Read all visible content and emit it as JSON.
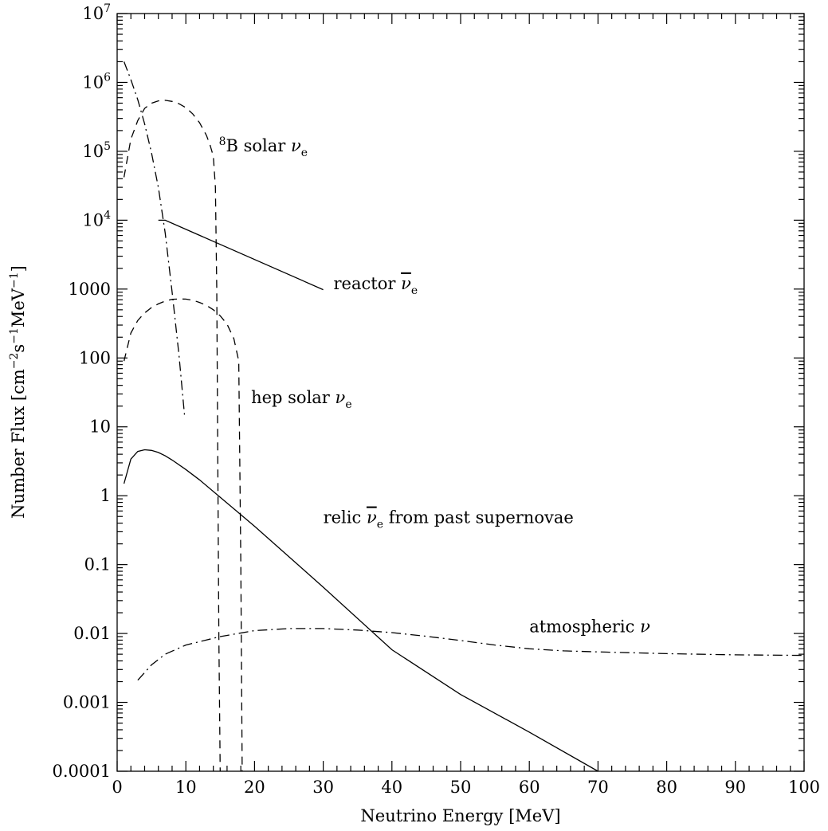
{
  "chart_data": {
    "type": "line",
    "title": "",
    "xlabel": "Neutrino Energy [MeV]",
    "ylabel": {
      "prefix": "Number Flux [cm",
      "exp1": "−2",
      "mid": "s",
      "exp2": "−1",
      "mid2": "MeV",
      "exp3": "−1",
      "suffix": "]"
    },
    "xlim": [
      0,
      100
    ],
    "ylim": [
      0.0001,
      10000000
    ],
    "yscale": "log",
    "grid": false,
    "legend": "none",
    "x_ticks": [
      "0",
      "10",
      "20",
      "30",
      "40",
      "50",
      "60",
      "70",
      "80",
      "90",
      "100"
    ],
    "y_ticks": [
      {
        "value": 0.0001,
        "label": "0.0001"
      },
      {
        "value": 0.001,
        "label": "0.001"
      },
      {
        "value": 0.01,
        "label": "0.01"
      },
      {
        "value": 0.1,
        "label": "0.1"
      },
      {
        "value": 1,
        "label": "1"
      },
      {
        "value": 10,
        "label": "10"
      },
      {
        "value": 100,
        "label": "100"
      },
      {
        "value": 1000,
        "label": "1000"
      },
      {
        "value": 10000,
        "label": "10",
        "exp": "4"
      },
      {
        "value": 100000,
        "label": "10",
        "exp": "5"
      },
      {
        "value": 1000000,
        "label": "10",
        "exp": "6"
      },
      {
        "value": 10000000,
        "label": "10",
        "exp": "7"
      }
    ],
    "series": [
      {
        "id": "b8-solar",
        "style": "dashed",
        "x": [
          1,
          2,
          3,
          4,
          5,
          6,
          7,
          8,
          9,
          10,
          11,
          12,
          13,
          13.5,
          14,
          14.3,
          14.5,
          14.8,
          15
        ],
        "y": [
          42000,
          150000,
          280000,
          420000,
          500000,
          540000,
          550000,
          530000,
          490000,
          430000,
          350000,
          260000,
          170000,
          125000,
          85000,
          30000,
          1000,
          0.01,
          0.0001
        ]
      },
      {
        "id": "hep-solar",
        "style": "dashed",
        "x": [
          1,
          2,
          3,
          4,
          5,
          6,
          7,
          8,
          9,
          10,
          11,
          12,
          13,
          14,
          15,
          16,
          17,
          17.7,
          18,
          18.2
        ],
        "y": [
          90,
          230,
          350,
          450,
          540,
          610,
          670,
          710,
          720,
          715,
          690,
          640,
          580,
          500,
          410,
          310,
          190,
          90,
          0.1,
          0.0001
        ]
      },
      {
        "id": "reactor",
        "style": "solid",
        "x": [
          6,
          7,
          30
        ],
        "y": [
          10000,
          10000,
          980
        ]
      },
      {
        "id": "reactor-steep",
        "style": "dashdot",
        "x": [
          1,
          2,
          3,
          4,
          5,
          6,
          7,
          8,
          9,
          9.8
        ],
        "y": [
          2000000,
          1100000,
          560000,
          250000,
          95000,
          30000,
          6500,
          900,
          110,
          15
        ]
      },
      {
        "id": "relic",
        "style": "solid",
        "x": [
          1,
          2,
          3,
          4,
          5,
          6,
          7,
          8,
          10,
          12,
          15,
          20,
          30,
          40,
          50,
          60,
          70
        ],
        "y": [
          1.5,
          3.4,
          4.4,
          4.65,
          4.55,
          4.25,
          3.8,
          3.3,
          2.4,
          1.7,
          0.95,
          0.36,
          0.047,
          0.0058,
          0.0013,
          0.00037,
          0.0001
        ]
      },
      {
        "id": "atmospheric",
        "style": "dashdot",
        "x": [
          3,
          5,
          7,
          10,
          15,
          20,
          25,
          30,
          35,
          40,
          45,
          50,
          55,
          60,
          65,
          70,
          80,
          90,
          100
        ],
        "y": [
          0.0021,
          0.0035,
          0.005,
          0.0068,
          0.009,
          0.011,
          0.0118,
          0.0118,
          0.0112,
          0.0103,
          0.0091,
          0.0079,
          0.0068,
          0.006,
          0.0056,
          0.0054,
          0.0051,
          0.0049,
          0.0048
        ]
      }
    ],
    "annotations": [
      {
        "id": "b8",
        "sup": "8",
        "text": "B solar ",
        "nu": "ν",
        "sub": "e",
        "bar": false,
        "x": 14.8,
        "y": 100000
      },
      {
        "id": "reactor",
        "text": "reactor ",
        "nu": "ν",
        "sub": "e",
        "bar": true,
        "x": 31.5,
        "y": 1000
      },
      {
        "id": "hep",
        "text": "hep solar ",
        "nu": "ν",
        "sub": "e",
        "bar": false,
        "x": 19.5,
        "y": 22
      },
      {
        "id": "relic",
        "text": "relic ",
        "nu": "ν",
        "sub": "e",
        "bar": true,
        "after": "  from past supernovae",
        "x": 30,
        "y": 0.4
      },
      {
        "id": "atmos",
        "text": "atmospheric ",
        "nu": "ν",
        "sub": "",
        "bar": false,
        "x": 60,
        "y": 0.0105
      }
    ]
  }
}
